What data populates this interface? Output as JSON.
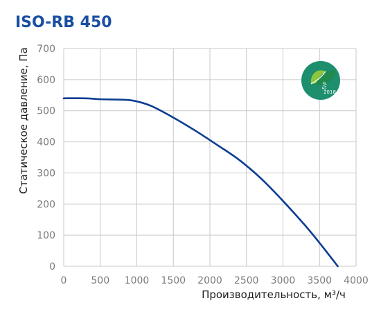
{
  "chart_data": {
    "type": "line",
    "title": "ISO-RB 450",
    "xlabel": "Производительность, м³/ч",
    "ylabel": "Статическое давление, Па",
    "xlim": [
      0,
      4000
    ],
    "ylim": [
      0,
      700
    ],
    "x_ticks": [
      0,
      500,
      1000,
      1500,
      2000,
      2500,
      3000,
      3500,
      4000
    ],
    "y_ticks": [
      0,
      100,
      200,
      300,
      400,
      500,
      600,
      700
    ],
    "x_tick_labels": [
      "0",
      "500",
      "1000",
      "1500",
      "2000",
      "2500",
      "3000",
      "3500",
      "4000"
    ],
    "y_tick_labels": [
      "0",
      "100",
      "200",
      "300",
      "400",
      "500",
      "600",
      "700"
    ],
    "grid": true,
    "series": [
      {
        "x": [
          0,
          300,
          500,
          700,
          850,
          1000,
          1200,
          1500,
          1800,
          2100,
          2400,
          2700,
          3000,
          3300,
          3500,
          3750
        ],
        "y": [
          540,
          540,
          537,
          536,
          535,
          530,
          515,
          478,
          436,
          390,
          342,
          282,
          210,
          132,
          75,
          0
        ]
      }
    ]
  },
  "colors": {
    "title": "#1a4fa0",
    "curve": "#0b3d91",
    "grid": "#c9c9c9",
    "tick_text": "#7a7a7a",
    "axis_text": "#1a1a1a",
    "badge": "#1d8f6f",
    "leaf_light": "#8cc63f",
    "leaf_dark": "#1f8a4c"
  },
  "badge": {
    "icon": "erp-2018-leaf-badge",
    "line1": "ErP",
    "line2": "2018"
  }
}
